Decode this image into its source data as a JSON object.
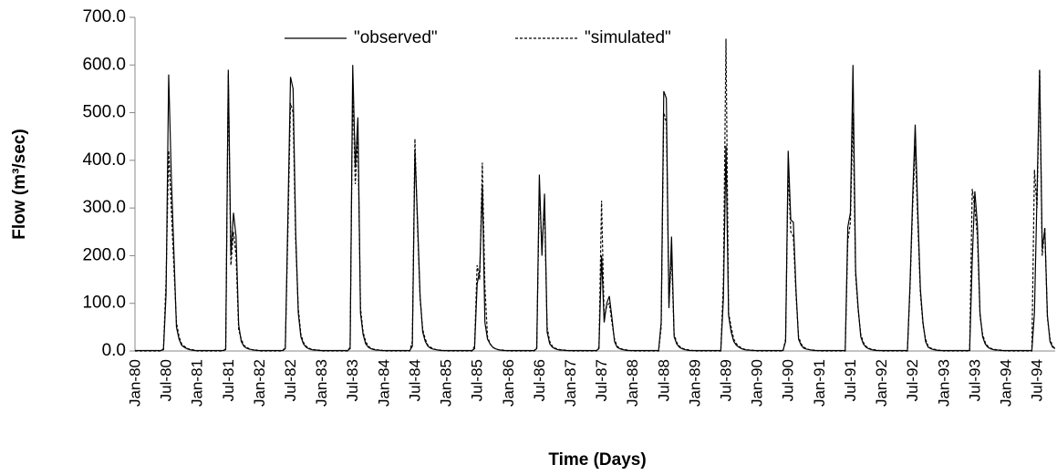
{
  "chart_data": {
    "type": "line",
    "ylabel": "Flow  (m³/sec)",
    "xlabel": "Time (Days)",
    "legend": "top",
    "ylim": [
      0,
      700
    ],
    "yticks": [
      {
        "value": 0,
        "label": "0.0"
      },
      {
        "value": 100,
        "label": "100.0"
      },
      {
        "value": 200,
        "label": "200.0"
      },
      {
        "value": 300,
        "label": "300.0"
      },
      {
        "value": 400,
        "label": "400.0"
      },
      {
        "value": 500,
        "label": "500.0"
      },
      {
        "value": 600,
        "label": "600.0"
      },
      {
        "value": 700,
        "label": "700.0"
      }
    ],
    "categories": [
      "Jan-80",
      null,
      null,
      null,
      null,
      null,
      null,
      null,
      null,
      null,
      null,
      null,
      "Jul-80",
      null,
      null,
      null,
      null,
      null,
      null,
      null,
      null,
      null,
      null,
      null,
      "Jan-81",
      null,
      null,
      null,
      null,
      null,
      null,
      null,
      null,
      null,
      null,
      null,
      "Jul-81",
      null,
      null,
      null,
      null,
      null,
      null,
      null,
      null,
      null,
      null,
      null,
      "Jan-82",
      null,
      null,
      null,
      null,
      null,
      null,
      null,
      null,
      null,
      null,
      null,
      "Jul-82",
      null,
      null,
      null,
      null,
      null,
      null,
      null,
      null,
      null,
      null,
      null,
      "Jan-83",
      null,
      null,
      null,
      null,
      null,
      null,
      null,
      null,
      null,
      null,
      null,
      "Jul-83",
      null,
      null,
      null,
      null,
      null,
      null,
      null,
      null,
      null,
      null,
      null,
      "Jan-84",
      null,
      null,
      null,
      null,
      null,
      null,
      null,
      null,
      null,
      null,
      null,
      "Jul-84",
      null,
      null,
      null,
      null,
      null,
      null,
      null,
      null,
      null,
      null,
      null,
      "Jan-85",
      null,
      null,
      null,
      null,
      null,
      null,
      null,
      null,
      null,
      null,
      null,
      "Jul-85",
      null,
      null,
      null,
      null,
      null,
      null,
      null,
      null,
      null,
      null,
      null,
      "Jan-86",
      null,
      null,
      null,
      null,
      null,
      null,
      null,
      null,
      null,
      null,
      null,
      "Jul-86",
      null,
      null,
      null,
      null,
      null,
      null,
      null,
      null,
      null,
      null,
      null,
      "Jan-87",
      null,
      null,
      null,
      null,
      null,
      null,
      null,
      null,
      null,
      null,
      null,
      "Jul-87",
      null,
      null,
      null,
      null,
      null,
      null,
      null,
      null,
      null,
      null,
      null,
      "Jan-88",
      null,
      null,
      null,
      null,
      null,
      null,
      null,
      null,
      null,
      null,
      null,
      "Jul-88",
      null,
      null,
      null,
      null,
      null,
      null,
      null,
      null,
      null,
      null,
      null,
      "Jan-89",
      null,
      null,
      null,
      null,
      null,
      null,
      null,
      null,
      null,
      null,
      null,
      "Jul-89",
      null,
      null,
      null,
      null,
      null,
      null,
      null,
      null,
      null,
      null,
      null,
      "Jan-90",
      null,
      null,
      null,
      null,
      null,
      null,
      null,
      null,
      null,
      null,
      null,
      "Jul-90",
      null,
      null,
      null,
      null,
      null,
      null,
      null,
      null,
      null,
      null,
      null,
      "Jan-91",
      null,
      null,
      null,
      null,
      null,
      null,
      null,
      null,
      null,
      null,
      null,
      "Jul-91",
      null,
      null,
      null,
      null,
      null,
      null,
      null,
      null,
      null,
      null,
      null,
      "Jan-92",
      null,
      null,
      null,
      null,
      null,
      null,
      null,
      null,
      null,
      null,
      null,
      "Jul-92",
      null,
      null,
      null,
      null,
      null,
      null,
      null,
      null,
      null,
      null,
      null,
      "Jan-93",
      null,
      null,
      null,
      null,
      null,
      null,
      null,
      null,
      null,
      null,
      null,
      "Jul-93",
      null,
      null,
      null,
      null,
      null,
      null,
      null,
      null,
      null,
      null,
      null,
      "Jan-94",
      null,
      null,
      null,
      null,
      null,
      null,
      null,
      null,
      null,
      null,
      null,
      "Jul-94",
      null,
      null,
      null,
      null,
      null,
      null,
      null
    ],
    "series": [
      {
        "name": "\"observed\"",
        "color": "#000000",
        "dash": false,
        "values": [
          1,
          1,
          1,
          1,
          1,
          1,
          1,
          1,
          1,
          1,
          1,
          3,
          120,
          580,
          370,
          210,
          50,
          25,
          12,
          8,
          5,
          3,
          2,
          1,
          1,
          1,
          1,
          1,
          1,
          1,
          1,
          1,
          1,
          1,
          1,
          3,
          590,
          200,
          290,
          240,
          55,
          20,
          10,
          6,
          4,
          3,
          2,
          1,
          1,
          1,
          1,
          1,
          1,
          1,
          1,
          1,
          1,
          1,
          5,
          285,
          575,
          550,
          250,
          80,
          30,
          15,
          8,
          5,
          3,
          2,
          2,
          1,
          1,
          1,
          1,
          1,
          1,
          1,
          1,
          1,
          1,
          1,
          1,
          5,
          600,
          385,
          490,
          80,
          35,
          15,
          8,
          5,
          3,
          2,
          2,
          1,
          1,
          1,
          1,
          1,
          1,
          1,
          1,
          1,
          1,
          1,
          1,
          10,
          420,
          275,
          115,
          40,
          20,
          10,
          6,
          4,
          3,
          2,
          1,
          1,
          1,
          1,
          1,
          1,
          1,
          1,
          1,
          1,
          1,
          1,
          1,
          5,
          140,
          170,
          345,
          60,
          25,
          15,
          8,
          5,
          3,
          2,
          1,
          1,
          1,
          1,
          1,
          1,
          1,
          1,
          1,
          1,
          1,
          1,
          1,
          5,
          370,
          200,
          330,
          40,
          15,
          8,
          5,
          3,
          2,
          2,
          1,
          1,
          1,
          1,
          1,
          1,
          1,
          1,
          1,
          1,
          1,
          1,
          1,
          5,
          200,
          60,
          100,
          115,
          70,
          20,
          8,
          5,
          3,
          2,
          1,
          1,
          1,
          1,
          1,
          1,
          1,
          1,
          1,
          1,
          1,
          1,
          1,
          60,
          545,
          530,
          90,
          240,
          30,
          15,
          8,
          5,
          3,
          2,
          1,
          1,
          1,
          1,
          1,
          1,
          1,
          1,
          1,
          1,
          1,
          1,
          1,
          110,
          430,
          75,
          40,
          20,
          12,
          8,
          5,
          3,
          2,
          2,
          1,
          1,
          1,
          1,
          1,
          1,
          1,
          1,
          1,
          1,
          1,
          1,
          1,
          20,
          420,
          275,
          270,
          130,
          25,
          12,
          6,
          4,
          3,
          2,
          1,
          1,
          1,
          1,
          1,
          1,
          1,
          1,
          1,
          1,
          1,
          1,
          1,
          260,
          290,
          600,
          170,
          90,
          30,
          15,
          8,
          5,
          3,
          2,
          1,
          1,
          1,
          1,
          1,
          1,
          1,
          1,
          1,
          1,
          1,
          1,
          1,
          140,
          320,
          475,
          295,
          130,
          60,
          20,
          8,
          5,
          3,
          2,
          1,
          1,
          1,
          1,
          1,
          1,
          1,
          1,
          1,
          1,
          1,
          1,
          1,
          190,
          335,
          265,
          80,
          30,
          15,
          8,
          5,
          3,
          2,
          2,
          1,
          1,
          1,
          1,
          1,
          1,
          1,
          1,
          1,
          1,
          1,
          1,
          1,
          80,
          330,
          590,
          215,
          255,
          75,
          20,
          8,
          5
        ]
      },
      {
        "name": "\"simulated\"",
        "color": "#000000",
        "dash": true,
        "values": [
          0,
          0,
          0,
          0,
          0,
          0,
          0,
          0,
          0,
          0,
          0,
          5,
          150,
          420,
          300,
          180,
          60,
          30,
          15,
          10,
          6,
          4,
          3,
          2,
          0,
          0,
          0,
          0,
          0,
          0,
          0,
          0,
          0,
          0,
          0,
          5,
          580,
          180,
          250,
          200,
          45,
          25,
          12,
          8,
          5,
          3,
          2,
          2,
          0,
          0,
          0,
          0,
          0,
          0,
          0,
          0,
          0,
          0,
          10,
          250,
          520,
          500,
          230,
          90,
          35,
          18,
          10,
          6,
          4,
          3,
          2,
          2,
          0,
          0,
          0,
          0,
          0,
          0,
          0,
          0,
          0,
          0,
          0,
          8,
          560,
          350,
          450,
          90,
          40,
          20,
          10,
          6,
          4,
          3,
          2,
          2,
          0,
          0,
          0,
          0,
          0,
          0,
          0,
          0,
          0,
          0,
          0,
          20,
          445,
          260,
          110,
          45,
          25,
          12,
          8,
          5,
          3,
          2,
          2,
          1,
          0,
          0,
          0,
          0,
          0,
          0,
          0,
          0,
          0,
          0,
          0,
          10,
          180,
          150,
          395,
          135,
          30,
          15,
          8,
          5,
          3,
          2,
          2,
          1,
          0,
          0,
          0,
          0,
          0,
          0,
          0,
          0,
          0,
          0,
          0,
          8,
          340,
          220,
          300,
          50,
          20,
          10,
          6,
          4,
          3,
          2,
          2,
          1,
          0,
          0,
          0,
          0,
          0,
          0,
          0,
          0,
          0,
          0,
          0,
          8,
          315,
          70,
          95,
          100,
          60,
          25,
          10,
          6,
          4,
          3,
          2,
          1,
          0,
          0,
          0,
          0,
          0,
          0,
          0,
          0,
          0,
          0,
          0,
          50,
          500,
          480,
          100,
          200,
          35,
          18,
          10,
          6,
          4,
          3,
          2,
          1,
          0,
          0,
          0,
          0,
          0,
          0,
          0,
          0,
          0,
          0,
          0,
          145,
          655,
          80,
          50,
          25,
          15,
          10,
          6,
          4,
          3,
          2,
          2,
          1,
          0,
          0,
          0,
          0,
          0,
          0,
          0,
          0,
          0,
          0,
          0,
          25,
          380,
          250,
          240,
          120,
          30,
          15,
          8,
          5,
          3,
          2,
          2,
          1,
          0,
          0,
          0,
          0,
          0,
          0,
          0,
          0,
          0,
          0,
          0,
          230,
          270,
          500,
          160,
          85,
          35,
          18,
          10,
          6,
          4,
          3,
          2,
          1,
          0,
          0,
          0,
          0,
          0,
          0,
          0,
          0,
          0,
          0,
          0,
          130,
          300,
          430,
          270,
          120,
          55,
          25,
          10,
          6,
          4,
          3,
          2,
          1,
          0,
          0,
          0,
          0,
          0,
          0,
          0,
          0,
          0,
          0,
          0,
          340,
          300,
          240,
          75,
          35,
          18,
          10,
          6,
          4,
          3,
          2,
          2,
          1,
          0,
          0,
          0,
          0,
          0,
          0,
          0,
          0,
          0,
          0,
          0,
          380,
          300,
          590,
          200,
          260,
          70,
          25,
          10,
          6
        ]
      }
    ]
  }
}
